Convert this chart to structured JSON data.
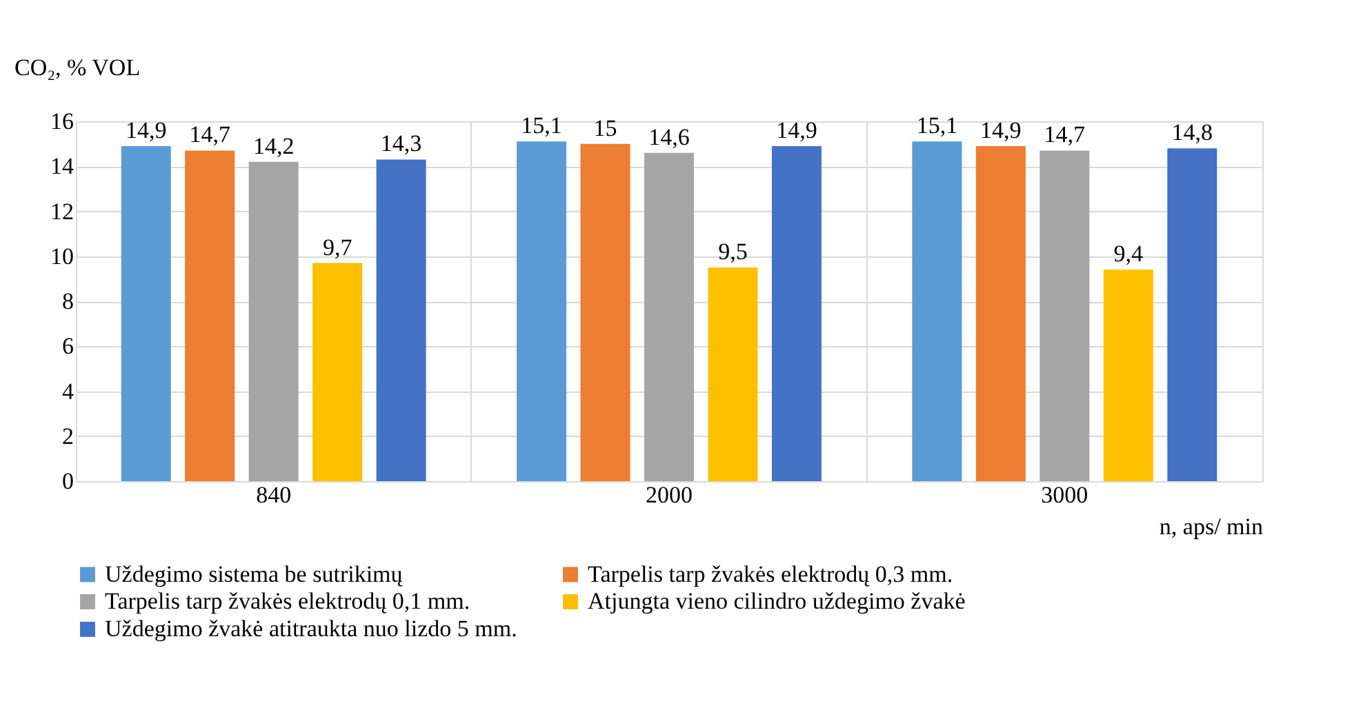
{
  "chart_data": {
    "type": "bar",
    "ylabel": "CO₂, % VOL",
    "xlabel": "n, aps/ min",
    "categories": [
      "840",
      "2000",
      "3000"
    ],
    "series": [
      {
        "name": "Uždegimo sistema be sutrikimų",
        "color": "#5b9bd5",
        "values": [
          14.9,
          15.1,
          15.1
        ],
        "value_labels": [
          "14,9",
          "15,1",
          "15,1"
        ]
      },
      {
        "name": "Tarpelis tarp žvakės elektrodų 0,3 mm.",
        "color": "#ed7d31",
        "values": [
          14.7,
          15,
          14.9
        ],
        "value_labels": [
          "14,7",
          "15",
          "14,9"
        ]
      },
      {
        "name": "Tarpelis tarp žvakės elektrodų 0,1 mm.",
        "color": "#a5a5a5",
        "values": [
          14.2,
          14.6,
          14.7
        ],
        "value_labels": [
          "14,2",
          "14,6",
          "14,7"
        ]
      },
      {
        "name": "Atjungta vieno cilindro uždegimo žvakė",
        "color": "#ffc000",
        "values": [
          9.7,
          9.5,
          9.4
        ],
        "value_labels": [
          "9,7",
          "9,5",
          "9,4"
        ]
      },
      {
        "name": "Uždegimo žvakė atitraukta nuo lizdo 5 mm.",
        "color": "#4472c4",
        "values": [
          14.3,
          14.9,
          14.8
        ],
        "value_labels": [
          "14,3",
          "14,9",
          "14,8"
        ]
      }
    ],
    "ylim": [
      0,
      16
    ],
    "yticks": [
      0,
      2,
      4,
      6,
      8,
      10,
      12,
      14,
      16
    ],
    "grid": true,
    "legend": "bottom"
  }
}
